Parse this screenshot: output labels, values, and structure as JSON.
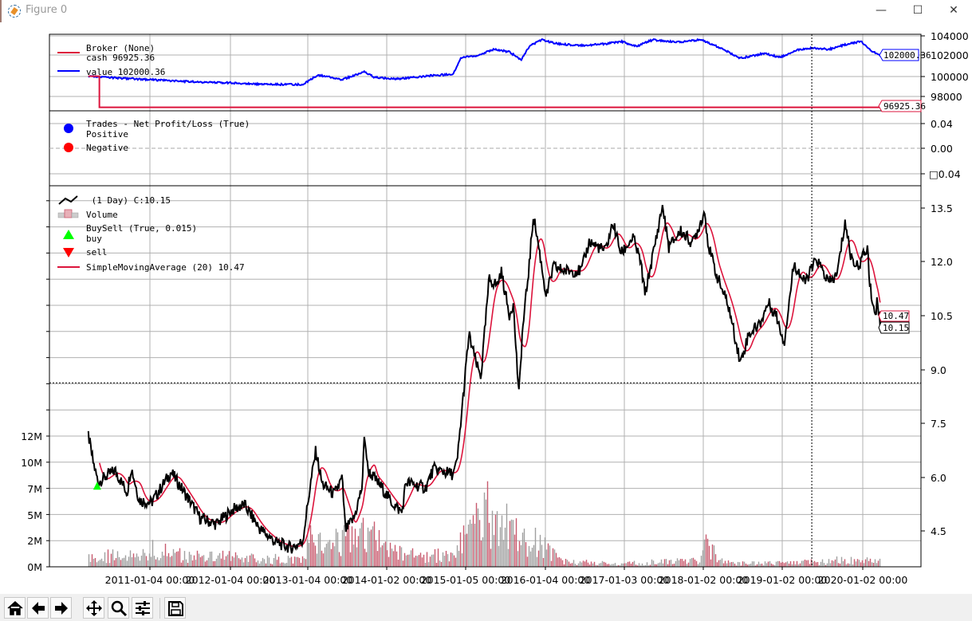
{
  "window": {
    "title": "Figure 0",
    "minimize": "—",
    "maximize": "☐",
    "close": "✕"
  },
  "toolbar": {
    "buttons": [
      "home",
      "back",
      "forward",
      "pan",
      "zoom",
      "configure-subplots",
      "save"
    ]
  },
  "colors": {
    "cash": "#dc143c",
    "value": "#0000ff",
    "price": "#000000",
    "sma": "#dc143c",
    "volume_up": "#c85a6e",
    "volume_down": "#a0a0a0",
    "buy": "#00ff00",
    "sell": "#ff0000",
    "positive": "#0000ff",
    "negative": "#ff0000"
  },
  "broker_panel": {
    "legend_title": "Broker (None)",
    "cash_label": "cash 96925.36",
    "value_label": "value 102000.36",
    "cash_last": "96925.36",
    "value_last": "102000.36",
    "yticks": [
      "104000",
      "102000",
      "100000",
      "98000"
    ]
  },
  "trades_panel": {
    "legend_title": "Trades - Net Profit/Loss (True)",
    "positive_label": "Positive",
    "negative_label": "Negative",
    "yticks": [
      "0.04",
      "0.00",
      "□0.04"
    ]
  },
  "price_panel": {
    "data_label": " (1 Day) C:10.15",
    "volume_label": "Volume",
    "buysell_label": "BuySell (True, 0.015)",
    "buy_label": "buy",
    "sell_label": "sell",
    "sma_label": "SimpleMovingAverage (20) 10.47",
    "sma_last": "10.47",
    "close_last": "10.15",
    "price_yticks": [
      "13.5",
      "12.0",
      "10.5",
      "9.0",
      "7.5",
      "6.0",
      "4.5"
    ],
    "volume_yticks": [
      "12M",
      "10M",
      "7M",
      "5M",
      "2M",
      "0M"
    ]
  },
  "xaxis": {
    "ticks": [
      "2011-01-04 00:00",
      "2012-01-04 00:00",
      "2013-01-04 00:00",
      "2014-01-02 00:00",
      "2015-01-05 00:00",
      "2016-01-04 00:00",
      "2017-01-03 00:00",
      "2018-01-02 00:00",
      "2019-01-02 00:00",
      "2020-01-02 00:00"
    ]
  },
  "chart_data": [
    {
      "type": "line",
      "panel": "broker",
      "ylim": [
        97000,
        104500
      ],
      "cash": {
        "start": [
          "2010-03-31",
          100000
        ],
        "after": [
          "2010-05-20",
          96925.36
        ],
        "end": "2020-03-23"
      },
      "value": [
        [
          "2010-03-31",
          100000
        ],
        [
          "2010-06-05",
          99900
        ],
        [
          "2011-01-11",
          99660
        ],
        [
          "2011-08-20",
          99420
        ],
        [
          "2012-01-10",
          99350
        ],
        [
          "2012-06-09",
          99190
        ],
        [
          "2012-12-10",
          99190
        ],
        [
          "2013-02-21",
          100130
        ],
        [
          "2013-06-11",
          99660
        ],
        [
          "2013-09-22",
          100450
        ],
        [
          "2013-11-05",
          99900
        ],
        [
          "2014-02-24",
          99740
        ],
        [
          "2014-07-21",
          100060
        ],
        [
          "2014-11-08",
          100210
        ],
        [
          "2014-12-15",
          101870
        ],
        [
          "2015-02-26",
          102030
        ],
        [
          "2015-05-11",
          102660
        ],
        [
          "2015-07-23",
          102420
        ],
        [
          "2015-09-16",
          101630
        ],
        [
          "2015-10-23",
          102970
        ],
        [
          "2015-12-17",
          103610
        ],
        [
          "2016-02-29",
          103210
        ],
        [
          "2016-06-18",
          103050
        ],
        [
          "2016-10-06",
          103210
        ],
        [
          "2016-12-19",
          103450
        ],
        [
          "2017-03-02",
          102970
        ],
        [
          "2017-05-14",
          103610
        ],
        [
          "2017-09-02",
          103370
        ],
        [
          "2017-12-21",
          103610
        ],
        [
          "2018-03-05",
          102970
        ],
        [
          "2018-06-23",
          101790
        ],
        [
          "2018-10-11",
          102260
        ],
        [
          "2018-12-24",
          101870
        ],
        [
          "2019-03-07",
          102580
        ],
        [
          "2019-05-20",
          102820
        ],
        [
          "2019-08-01",
          102660
        ],
        [
          "2019-10-14",
          103130
        ],
        [
          "2019-12-26",
          103450
        ],
        [
          "2020-02-01",
          102660
        ],
        [
          "2020-03-23",
          102000.36
        ]
      ]
    },
    {
      "type": "line",
      "panel": "price",
      "ylim": [
        3.5,
        14.0
      ],
      "close": [
        [
          "2010-03-31",
          7.18
        ],
        [
          "2010-04-22",
          6.42
        ],
        [
          "2010-05-14",
          5.87
        ],
        [
          "2010-07-30",
          6.2
        ],
        [
          "2010-09-23",
          5.58
        ],
        [
          "2010-10-11",
          6.3
        ],
        [
          "2010-11-17",
          5.36
        ],
        [
          "2011-01-11",
          5.3
        ],
        [
          "2011-04-10",
          6.15
        ],
        [
          "2011-06-26",
          5.42
        ],
        [
          "2011-08-20",
          4.87
        ],
        [
          "2011-11-01",
          4.7
        ],
        [
          "2012-01-14",
          5.1
        ],
        [
          "2012-03-09",
          5.24
        ],
        [
          "2012-05-21",
          4.58
        ],
        [
          "2012-08-03",
          4.2
        ],
        [
          "2012-10-15",
          4.04
        ],
        [
          "2012-12-10",
          4.2
        ],
        [
          "2013-01-15",
          5.75
        ],
        [
          "2013-02-10",
          6.75
        ],
        [
          "2013-03-11",
          5.82
        ],
        [
          "2013-05-06",
          5.53
        ],
        [
          "2013-06-11",
          5.98
        ],
        [
          "2013-06-26",
          4.53
        ],
        [
          "2013-08-05",
          4.87
        ],
        [
          "2013-09-11",
          5.75
        ],
        [
          "2013-09-22",
          7.24
        ],
        [
          "2013-10-07",
          6.2
        ],
        [
          "2013-12-12",
          5.71
        ],
        [
          "2014-01-18",
          5.36
        ],
        [
          "2014-03-14",
          5.02
        ],
        [
          "2014-04-01",
          5.87
        ],
        [
          "2014-07-02",
          5.71
        ],
        [
          "2014-08-08",
          6.24
        ],
        [
          "2014-11-08",
          6.09
        ],
        [
          "2014-11-26",
          6.42
        ],
        [
          "2014-12-22",
          8.09
        ],
        [
          "2015-01-20",
          9.98
        ],
        [
          "2015-02-26",
          9.09
        ],
        [
          "2015-03-16",
          8.82
        ],
        [
          "2015-04-22",
          11.53
        ],
        [
          "2015-05-29",
          11.36
        ],
        [
          "2015-06-16",
          11.76
        ],
        [
          "2015-07-23",
          10.53
        ],
        [
          "2015-08-10",
          10.87
        ],
        [
          "2015-09-05",
          8.27
        ],
        [
          "2015-09-20",
          9.98
        ],
        [
          "2015-10-23",
          11.98
        ],
        [
          "2015-11-10",
          13.31
        ],
        [
          "2015-12-02",
          12.53
        ],
        [
          "2016-01-08",
          11.04
        ],
        [
          "2016-02-10",
          11.87
        ],
        [
          "2016-04-05",
          11.76
        ],
        [
          "2016-06-18",
          11.76
        ],
        [
          "2016-07-25",
          12.58
        ],
        [
          "2016-10-06",
          12.31
        ],
        [
          "2016-11-12",
          13.09
        ],
        [
          "2016-12-19",
          12.24
        ],
        [
          "2017-02-12",
          12.69
        ],
        [
          "2017-03-20",
          11.98
        ],
        [
          "2017-04-08",
          11.09
        ],
        [
          "2017-04-26",
          11.64
        ],
        [
          "2017-06-02",
          12.76
        ],
        [
          "2017-06-28",
          13.58
        ],
        [
          "2017-07-27",
          12.42
        ],
        [
          "2017-09-20",
          12.87
        ],
        [
          "2017-11-14",
          12.53
        ],
        [
          "2018-01-08",
          13.42
        ],
        [
          "2018-01-27",
          12.42
        ],
        [
          "2018-03-05",
          11.64
        ],
        [
          "2018-04-29",
          10.76
        ],
        [
          "2018-06-23",
          9.2
        ],
        [
          "2018-07-30",
          9.98
        ],
        [
          "2018-09-23",
          10.31
        ],
        [
          "2018-10-29",
          10.87
        ],
        [
          "2018-12-05",
          10.53
        ],
        [
          "2019-01-11",
          9.76
        ],
        [
          "2019-02-24",
          11.98
        ],
        [
          "2019-04-13",
          11.42
        ],
        [
          "2019-06-07",
          12.09
        ],
        [
          "2019-08-01",
          11.42
        ],
        [
          "2019-09-07",
          11.64
        ],
        [
          "2019-10-14",
          13.13
        ],
        [
          "2019-11-08",
          12.2
        ],
        [
          "2019-12-08",
          11.87
        ],
        [
          "2020-01-25",
          12.42
        ],
        [
          "2020-02-01",
          11.42
        ],
        [
          "2020-02-27",
          10.53
        ],
        [
          "2020-03-09",
          10.98
        ],
        [
          "2020-03-23",
          10.15
        ]
      ],
      "sma_period": 20,
      "buy_markers": [
        [
          "2010-05-10",
          5.75
        ]
      ],
      "sell_markers": []
    },
    {
      "type": "bar",
      "panel": "price-volume",
      "unit": "M",
      "volume": [
        [
          "2010-03-31",
          1.2
        ],
        [
          "2010-09-15",
          1.5
        ],
        [
          "2011-01-10",
          2.0
        ],
        [
          "2011-06-15",
          1.3
        ],
        [
          "2012-01-10",
          1.2
        ],
        [
          "2012-06-15",
          1.0
        ],
        [
          "2012-12-10",
          0.8
        ],
        [
          "2013-01-15",
          3.5
        ],
        [
          "2013-04-15",
          3.0
        ],
        [
          "2013-07-15",
          3.5
        ],
        [
          "2013-10-10",
          4.5
        ],
        [
          "2013-12-15",
          2.0
        ],
        [
          "2014-06-15",
          1.2
        ],
        [
          "2014-11-15",
          1.5
        ],
        [
          "2015-01-15",
          5.5
        ],
        [
          "2015-04-15",
          6.5
        ],
        [
          "2015-06-15",
          7.5
        ],
        [
          "2015-08-15",
          5.0
        ],
        [
          "2015-10-15",
          3.5
        ],
        [
          "2016-01-10",
          2.5
        ],
        [
          "2016-03-15",
          0.6
        ],
        [
          "2016-12-15",
          0.4
        ],
        [
          "2017-06-15",
          0.6
        ],
        [
          "2017-12-15",
          1.0
        ],
        [
          "2018-01-15",
          3.0
        ],
        [
          "2018-03-15",
          0.8
        ],
        [
          "2018-06-15",
          0.4
        ],
        [
          "2019-01-15",
          0.5
        ],
        [
          "2019-06-15",
          0.6
        ],
        [
          "2019-09-15",
          0.8
        ],
        [
          "2020-03-23",
          0.7
        ]
      ]
    }
  ],
  "cursor": {
    "date": "2019-05-16",
    "price": 8.64
  }
}
